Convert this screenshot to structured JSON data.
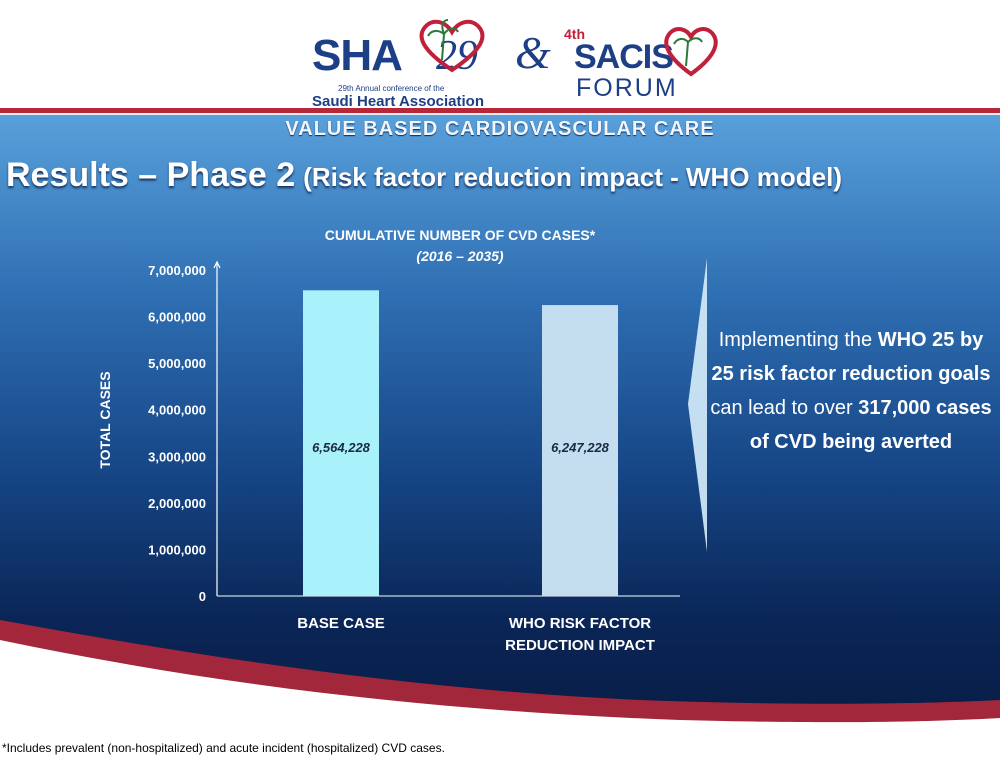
{
  "header": {
    "sha": {
      "text": "SHA",
      "number": "29",
      "subtitle_line1": "29th Annual conference of the",
      "subtitle_line2": "Saudi Heart Association"
    },
    "ampersand": "&",
    "sacis": {
      "ordinal": "4th",
      "name": "SACIS",
      "forum": "FORUM"
    }
  },
  "banner": "VALUE BASED CARDIOVASCULAR CARE",
  "title": {
    "main": "Results – Phase 2",
    "sub": "(Risk factor reduction impact - WHO model)"
  },
  "callout": {
    "parts": [
      {
        "text": "Implementing the ",
        "bold": false
      },
      {
        "text": "WHO 25 by 25 risk factor reduction goals",
        "bold": true
      },
      {
        "text": " can lead to over ",
        "bold": false
      },
      {
        "text": "317,000 cases of CVD being averted",
        "bold": true
      }
    ]
  },
  "footnote": "*Includes prevalent (non-hospitalized) and acute incident (hospitalized) CVD cases.",
  "colors": {
    "bar_base": "#a9f1fb",
    "bar_who": "#c4def0",
    "accent_red": "#b5283a",
    "brand_blue": "#1d3f86"
  },
  "chart_data": {
    "type": "bar",
    "title": "CUMULATIVE NUMBER OF CVD CASES*",
    "subtitle": "(2016 – 2035)",
    "ylabel": "TOTAL CASES",
    "xlabel": "",
    "categories": [
      "BASE CASE",
      "WHO RISK FACTOR REDUCTION IMPACT"
    ],
    "category_lines": [
      [
        "BASE CASE"
      ],
      [
        "WHO RISK FACTOR",
        "REDUCTION IMPACT"
      ]
    ],
    "values": [
      6564228,
      6247228
    ],
    "data_labels": [
      "6,564,228",
      "6,247,228"
    ],
    "ylim": [
      0,
      7000000
    ],
    "yticks": [
      0,
      1000000,
      2000000,
      3000000,
      4000000,
      5000000,
      6000000,
      7000000
    ],
    "ytick_labels": [
      "0",
      "1,000,000",
      "2,000,000",
      "3,000,000",
      "4,000,000",
      "5,000,000",
      "6,000,000",
      "7,000,000"
    ],
    "grid": false,
    "legend": false
  }
}
